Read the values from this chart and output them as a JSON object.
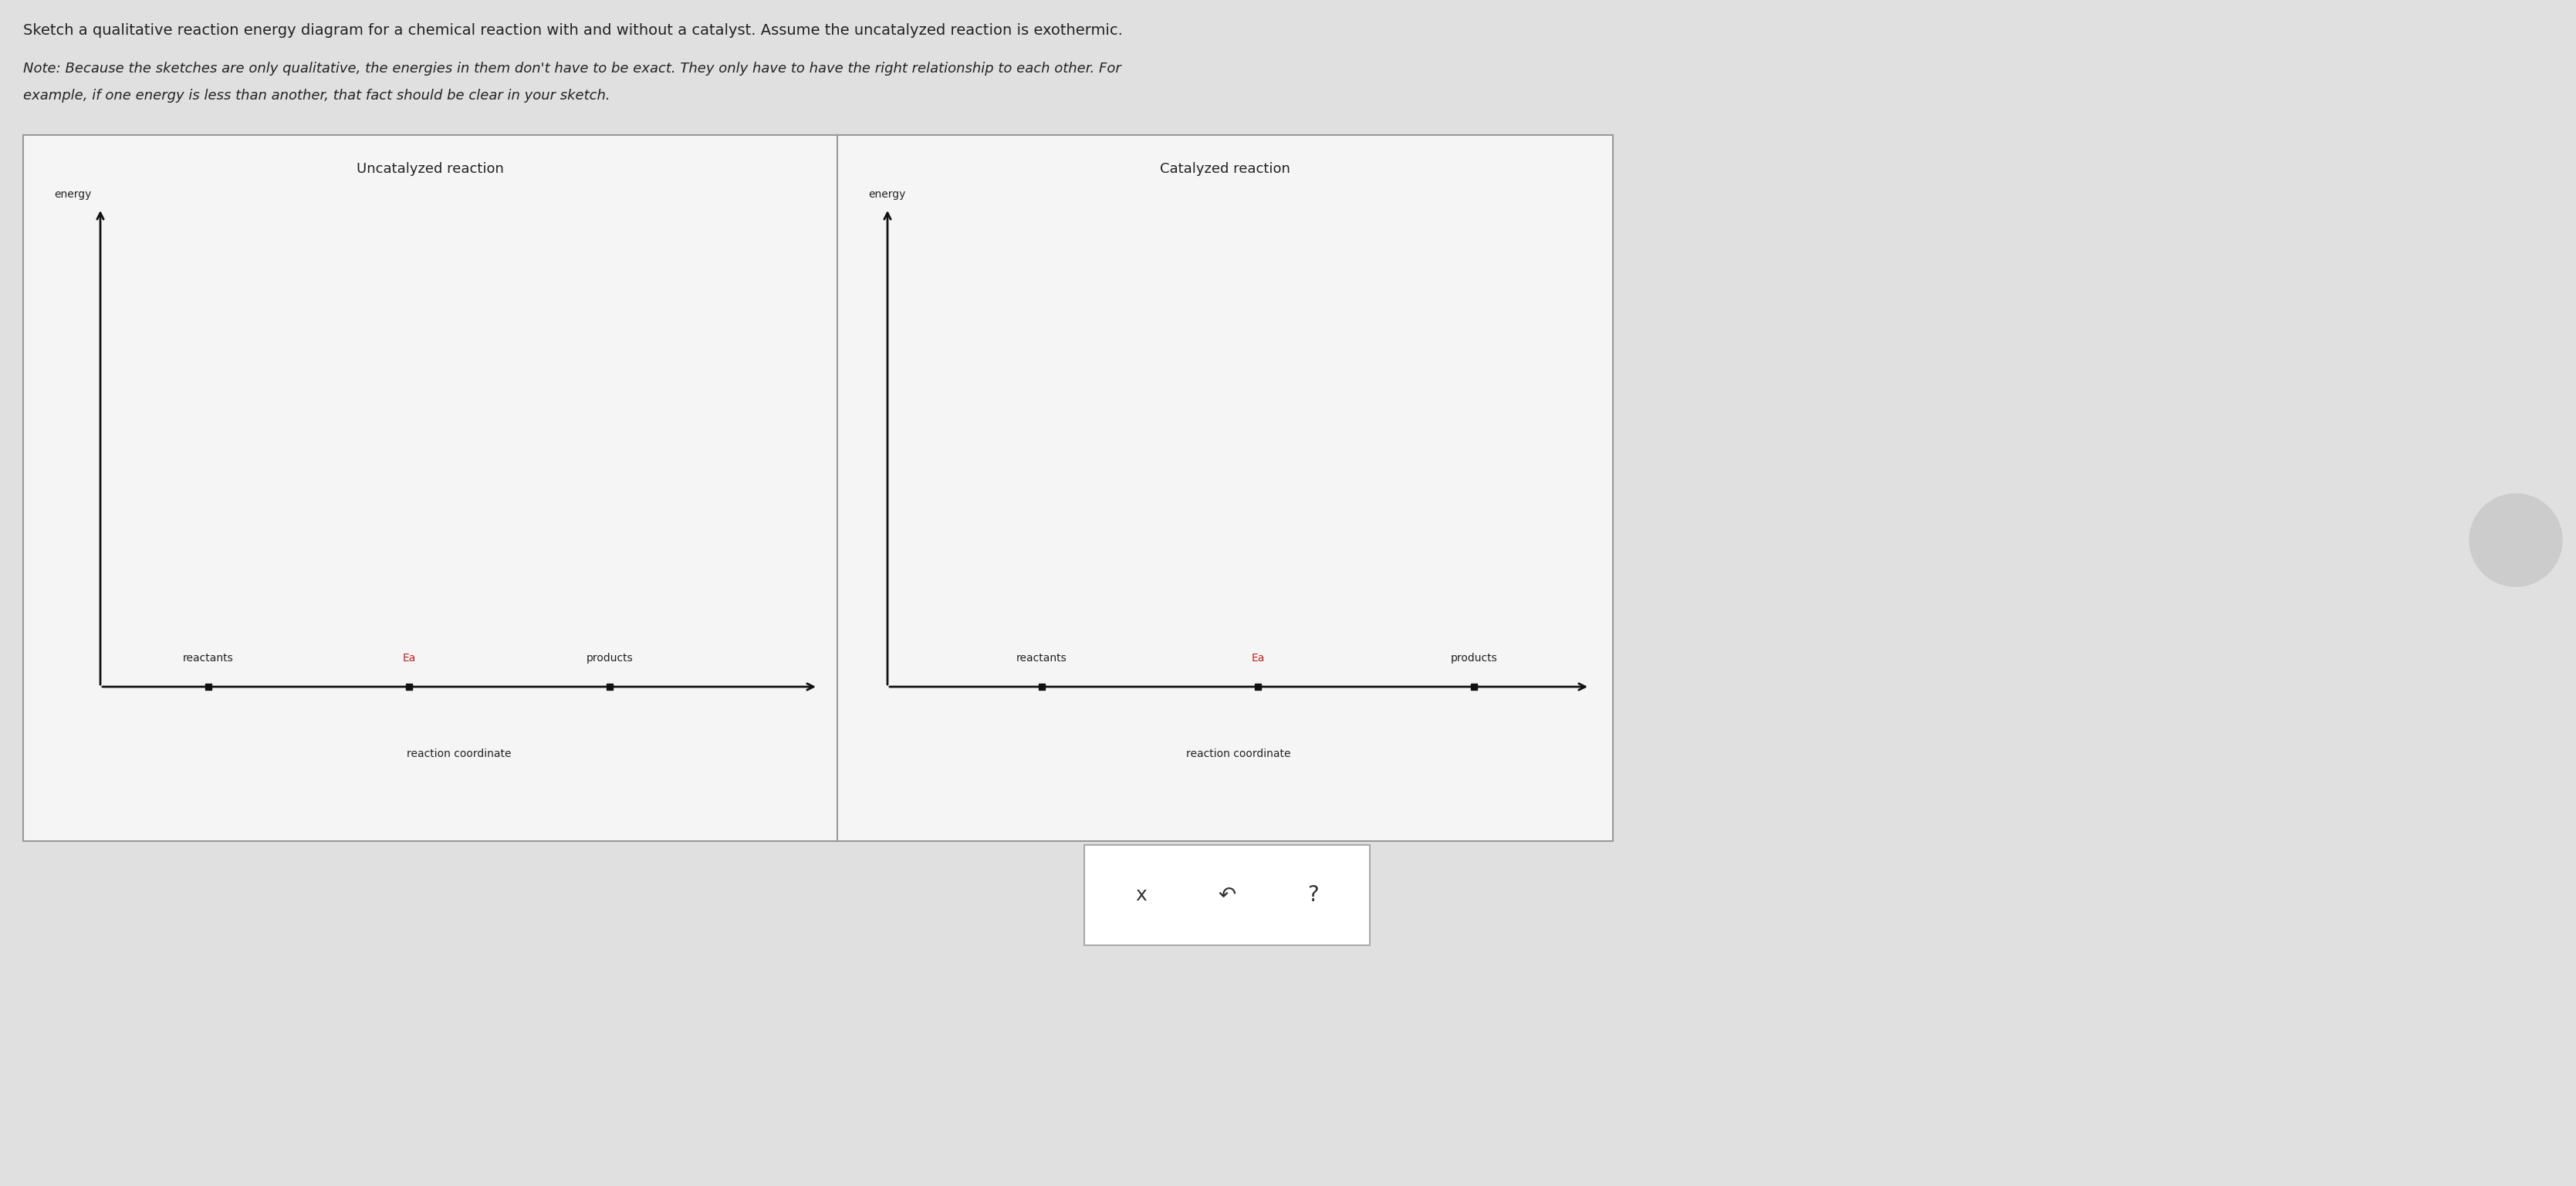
{
  "page_bg": "#e0e0e0",
  "box_bg": "#f5f5f5",
  "title_text": "Sketch a qualitative reaction energy diagram for a chemical reaction with and without a catalyst. Assume the uncatalyzed reaction is exothermic.",
  "note_line1": "Note: Because the sketches are only qualitative, the energies in them don't have to be exact. They only have to have the right relationship to each other. For",
  "note_line2": "example, if one energy is less than another, that fact should be clear in your sketch.",
  "left_title": "Uncatalyzed reaction",
  "right_title": "Catalyzed reaction",
  "ylabel": "energy",
  "xlabel": "reaction coordinate",
  "ea_color": "#bb2222",
  "axis_color": "#111111",
  "text_color": "#222222",
  "note_color": "#222222",
  "box_border_color": "#999999",
  "tick_labels": [
    "reactants",
    "Ea",
    "products"
  ],
  "tick_colors": [
    "#222222",
    "#bb2222",
    "#222222"
  ],
  "font_size_header": 14,
  "font_size_note": 13,
  "font_size_panel_title": 13,
  "font_size_axis_label": 10,
  "font_size_tick_label": 10,
  "btn_x_label": "x",
  "btn_redo_label": "↶",
  "btn_q_label": "?",
  "scroll_circle_color": "#cccccc"
}
